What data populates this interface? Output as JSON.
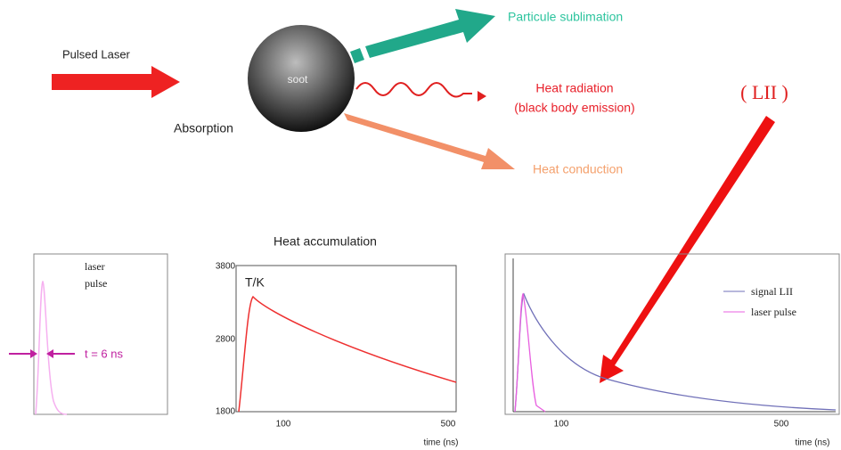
{
  "diagram": {
    "input": {
      "label": "Pulsed Laser"
    },
    "particle": {
      "label": "soot",
      "process": "Absorption"
    },
    "outputs": [
      {
        "label": "Particule sublimation"
      },
      {
        "label": "Heat radiation",
        "sublabel": "(black body emission)"
      },
      {
        "label": "Heat conduction"
      }
    ],
    "lii_label": "( LII )",
    "panels": [
      {
        "legend": [
          "laser",
          "pulse"
        ],
        "annotation": "t = 6 ns"
      },
      {
        "title": "Heat accumulation",
        "y_label": "T/K",
        "yticks": [
          3800,
          2800,
          1800
        ],
        "xticks": [
          100,
          500
        ],
        "x_label": "time (ns)"
      },
      {
        "legend": [
          "signal LII",
          "laser  pulse"
        ],
        "xticks": [
          100,
          500
        ],
        "x_label": "time (ns)"
      }
    ]
  }
}
